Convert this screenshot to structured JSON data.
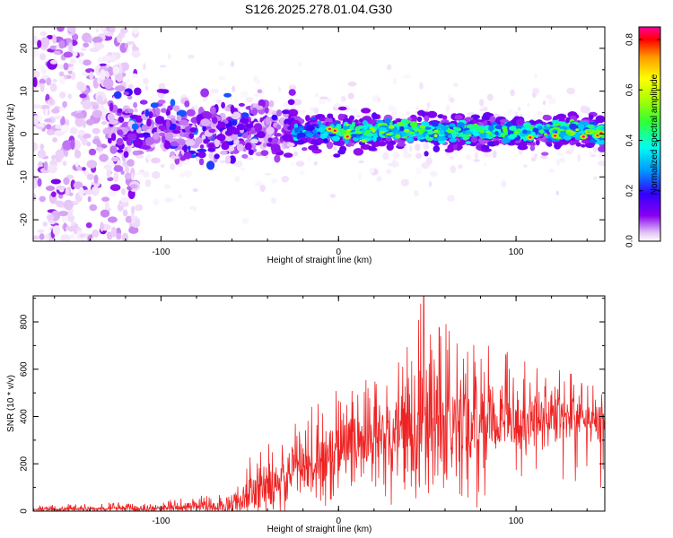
{
  "figure_title": "S126.2025.278.01.04.G30",
  "chart_data": [
    {
      "type": "heatmap",
      "xlabel": "Height of straight line (km)",
      "ylabel": "Frequency (Hz)",
      "xlim": [
        -172,
        150
      ],
      "ylim": [
        -25,
        25
      ],
      "xticks": [
        -100,
        0,
        100
      ],
      "yticks": [
        -20,
        -10,
        0,
        10,
        20
      ],
      "colorbar": {
        "label": "Normalized spectral amplitude",
        "range": [
          0,
          0.85
        ],
        "ticks": [
          "0.0",
          "0.2",
          "0.4",
          "0.6",
          "0.8"
        ],
        "colormap": [
          "#ffffff",
          "#e8c8f8",
          "#8800ee",
          "#3300ff",
          "#0099ff",
          "#00ffee",
          "#33ff33",
          "#aaff00",
          "#ffff00",
          "#ff9900",
          "#ff0000",
          "#ff0099"
        ]
      },
      "grid": false,
      "description_bands": [
        {
          "x_range": [
            -172,
            -120
          ],
          "freq_center": 0,
          "freq_spread": 25,
          "amplitude": 0.08
        },
        {
          "x_range": [
            -120,
            -30
          ],
          "freq_center": 1,
          "freq_spread": 8,
          "amplitude": 0.15
        },
        {
          "x_range": [
            -30,
            150
          ],
          "freq_center": 0.5,
          "freq_spread": 3.5,
          "amplitude": 0.35
        }
      ]
    },
    {
      "type": "line",
      "xlabel": "Height of straight line (km)",
      "ylabel": "SNR (10 * v/v)",
      "xlim": [
        -172,
        150
      ],
      "ylim": [
        0,
        910
      ],
      "xticks": [
        -100,
        0,
        100
      ],
      "yticks": [
        0,
        200,
        400,
        600,
        800
      ],
      "color": "#ee2222",
      "envelope": [
        {
          "x": -172,
          "base": 8,
          "spike": 25
        },
        {
          "x": -100,
          "base": 12,
          "spike": 45
        },
        {
          "x": -60,
          "base": 20,
          "spike": 80
        },
        {
          "x": -45,
          "base": 90,
          "spike": 300
        },
        {
          "x": -20,
          "base": 180,
          "spike": 420
        },
        {
          "x": 0,
          "base": 250,
          "spike": 520
        },
        {
          "x": 25,
          "base": 320,
          "spike": 640
        },
        {
          "x": 48,
          "base": 360,
          "spike": 910
        },
        {
          "x": 80,
          "base": 380,
          "spike": 760
        },
        {
          "x": 120,
          "base": 400,
          "spike": 620
        },
        {
          "x": 150,
          "base": 380,
          "spike": 520
        }
      ],
      "peak": {
        "x": 48,
        "y": 910
      },
      "grid": false
    }
  ]
}
